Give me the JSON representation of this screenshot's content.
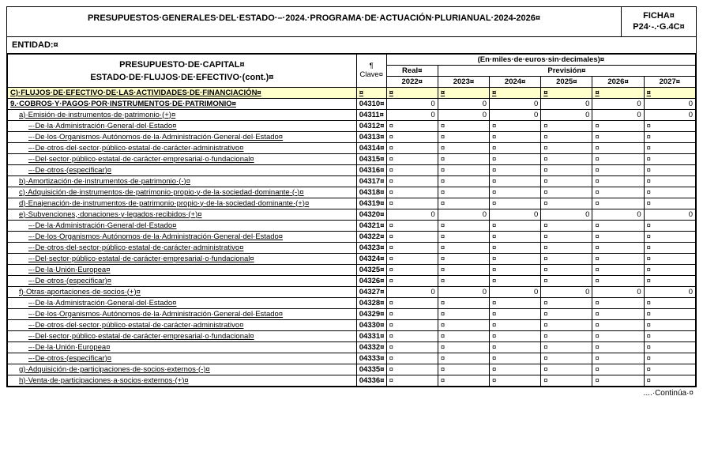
{
  "header": {
    "title": "PRESUPUESTOS·GENERALES·DEL·ESTADO·–·2024.·PROGRAMA·DE·ACTUACIÓN·PLURIANUAL·2024-2026¤",
    "ficha_l1": "FICHA¤",
    "ficha_l2": "P24·-.·G.4C¤",
    "entidad": "ENTIDAD:¤"
  },
  "cols": {
    "left_l1": "PRESUPUESTO·DE·CAPITAL¤",
    "left_l2": "ESTADO·DE·FLUJOS·DE·EFECTIVO·(cont.)¤",
    "clave": "¶\nClave¤",
    "miles": "(En·miles·de·euros·sin·decimales)¤",
    "real": "Real¤",
    "prevision": "Previsión¤",
    "years": [
      "2022¤",
      "2023¤",
      "2024¤",
      "2025¤",
      "2026¤",
      "2027¤"
    ]
  },
  "section": "C)·FLUJOS·DE·EFECTIVO·DE·LAS·ACTIVIDADES·DE·FINANCIACIÓN¤",
  "rows": [
    {
      "desc": "9.·COBROS·Y·PAGOS·POR·INSTRUMENTOS·DE·PATRIMONIO¤",
      "clave": "04310¤",
      "bold": true,
      "vals": [
        "0",
        "0",
        "0",
        "0",
        "0",
        "0"
      ]
    },
    {
      "desc": "a)·Emisión·de·instrumentos·de·patrimonio·(+)¤",
      "clave": "04311¤",
      "ind": 1,
      "vals": [
        "0",
        "0",
        "0",
        "0",
        "0",
        "0"
      ]
    },
    {
      "desc": "–·De·la·Administración·General·del·Estado¤",
      "clave": "04312¤",
      "ind": 2,
      "vals": [
        "¤",
        "¤",
        "¤",
        "¤",
        "¤",
        "¤"
      ]
    },
    {
      "desc": "–·De·los·Organismos·Autónomos·de·la·Administración·General·del·Estado¤",
      "clave": "04313¤",
      "ind": 2,
      "vals": [
        "¤",
        "¤",
        "¤",
        "¤",
        "¤",
        "¤"
      ]
    },
    {
      "desc": "–·De·otros·del·sector·público·estatal·de·carácter·administrativo¤",
      "clave": "04314¤",
      "ind": 2,
      "vals": [
        "¤",
        "¤",
        "¤",
        "¤",
        "¤",
        "¤"
      ]
    },
    {
      "desc": "–·Del·sector·público·estatal·de·carácter·empresarial·o·fundacional¤",
      "clave": "04315¤",
      "ind": 2,
      "vals": [
        "¤",
        "¤",
        "¤",
        "¤",
        "¤",
        "¤"
      ]
    },
    {
      "desc": "–·De·otros·(especificar)¤",
      "clave": "04316¤",
      "ind": 2,
      "vals": [
        "¤",
        "¤",
        "¤",
        "¤",
        "¤",
        "¤"
      ]
    },
    {
      "desc": "b)·Amortización·de·instrumentos·de·patrimonio·(-)¤",
      "clave": "04317¤",
      "ind": 1,
      "vals": [
        "¤",
        "¤",
        "¤",
        "¤",
        "¤",
        "¤"
      ]
    },
    {
      "desc": "c)·Adquisición·de·instrumentos·de·patrimonio·propio·y·de·la·sociedad·dominante·(-)¤",
      "clave": "04318¤",
      "ind": 1,
      "vals": [
        "¤",
        "¤",
        "¤",
        "¤",
        "¤",
        "¤"
      ]
    },
    {
      "desc": "d)·Enajenación·de·instrumentos·de·patrimonio·propio·y·de·la·sociedad·dominante·(+)¤",
      "clave": "04319¤",
      "ind": 1,
      "vals": [
        "¤",
        "¤",
        "¤",
        "¤",
        "¤",
        "¤"
      ]
    },
    {
      "desc": "e)·Subvenciones,·donaciones·y·legados·recibidos·(+)¤",
      "clave": "04320¤",
      "ind": 1,
      "vals": [
        "0",
        "0",
        "0",
        "0",
        "0",
        "0"
      ]
    },
    {
      "desc": "–·De·la·Administración·General·del·Estado¤",
      "clave": "04321¤",
      "ind": 2,
      "vals": [
        "¤",
        "¤",
        "¤",
        "¤",
        "¤",
        "¤"
      ]
    },
    {
      "desc": "–·De·los·Organismos·Autónomos·de·la·Administración·General·del·Estado¤",
      "clave": "04322¤",
      "ind": 2,
      "vals": [
        "¤",
        "¤",
        "¤",
        "¤",
        "¤",
        "¤"
      ]
    },
    {
      "desc": "–·De·otros·del·sector·público·estatal·de·carácter·administrativo¤",
      "clave": "04323¤",
      "ind": 2,
      "vals": [
        "¤",
        "¤",
        "¤",
        "¤",
        "¤",
        "¤"
      ]
    },
    {
      "desc": "–·Del·sector·público·estatal·de·carácter·empresarial·o·fundacional¤",
      "clave": "04324¤",
      "ind": 2,
      "vals": [
        "¤",
        "¤",
        "¤",
        "¤",
        "¤",
        "¤"
      ]
    },
    {
      "desc": "–·De·la·Unión·Europea¤",
      "clave": "04325¤",
      "ind": 2,
      "vals": [
        "¤",
        "¤",
        "¤",
        "¤",
        "¤",
        "¤"
      ]
    },
    {
      "desc": "–·De·otros·(especificar)¤",
      "clave": "04326¤",
      "ind": 2,
      "vals": [
        "¤",
        "¤",
        "¤",
        "¤",
        "¤",
        "¤"
      ]
    },
    {
      "desc": "f)·Otras·aportaciones·de·socios·(+)¤",
      "clave": "04327¤",
      "ind": 1,
      "vals": [
        "0",
        "0",
        "0",
        "0",
        "0",
        "0"
      ]
    },
    {
      "desc": "–·De·la·Administración·General·del·Estado¤",
      "clave": "04328¤",
      "ind": 2,
      "vals": [
        "¤",
        "¤",
        "¤",
        "¤",
        "¤",
        "¤"
      ]
    },
    {
      "desc": "–·De·los·Organismos·Autónomos·de·la·Administración·General·del·Estado¤",
      "clave": "04329¤",
      "ind": 2,
      "vals": [
        "¤",
        "¤",
        "¤",
        "¤",
        "¤",
        "¤"
      ]
    },
    {
      "desc": "–·De·otros·del·sector·público·estatal·de·carácter·administrativo¤",
      "clave": "04330¤",
      "ind": 2,
      "vals": [
        "¤",
        "¤",
        "¤",
        "¤",
        "¤",
        "¤"
      ]
    },
    {
      "desc": "–·Del·sector·público·estatal·de·carácter·empresarial·o·fundacional¤",
      "clave": "04331¤",
      "ind": 2,
      "vals": [
        "¤",
        "¤",
        "¤",
        "¤",
        "¤",
        "¤"
      ]
    },
    {
      "desc": "–·De·la·Unión·Europea¤",
      "clave": "04332¤",
      "ind": 2,
      "vals": [
        "¤",
        "¤",
        "¤",
        "¤",
        "¤",
        "¤"
      ]
    },
    {
      "desc": "–·De·otros·(especificar)¤",
      "clave": "04333¤",
      "ind": 2,
      "vals": [
        "¤",
        "¤",
        "¤",
        "¤",
        "¤",
        "¤"
      ]
    },
    {
      "desc": "g)·Adquisición·de·participaciones·de·socios·externos·(-)¤",
      "clave": "04335¤",
      "ind": 1,
      "vals": [
        "¤",
        "¤",
        "¤",
        "¤",
        "¤",
        "¤"
      ]
    },
    {
      "desc": "h)·Venta·de·participaciones·a·socios·externos·(+)¤",
      "clave": "04336¤",
      "ind": 1,
      "vals": [
        "¤",
        "¤",
        "¤",
        "¤",
        "¤",
        "¤"
      ]
    }
  ],
  "footer": "....·Continúa·¤"
}
